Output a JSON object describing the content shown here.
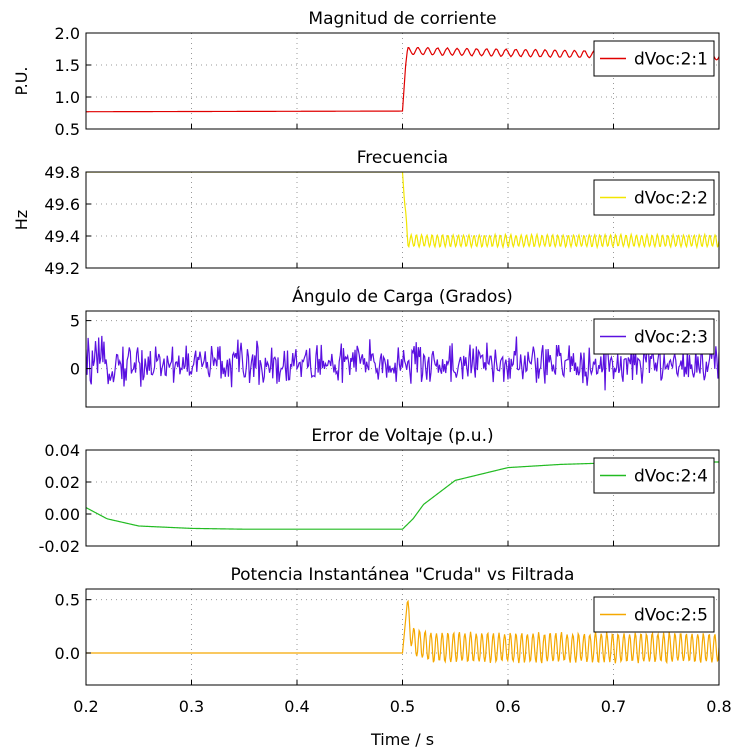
{
  "chart_data": [
    {
      "type": "line",
      "title": "Magnitud de corriente",
      "ylabel": "P.U.",
      "xlim": [
        0.2,
        0.8
      ],
      "ylim": [
        0.5,
        2.0
      ],
      "yticks": [
        "2.0",
        "1.5",
        "1.0",
        "0.5"
      ],
      "ytick_values": [
        2.0,
        1.5,
        1.0,
        0.5
      ],
      "grid": true,
      "legend": "top-right",
      "series": [
        {
          "name": "dVoc:2:1",
          "color": "#e00000",
          "x": [
            0.2,
            0.5,
            0.503,
            0.505,
            0.8
          ],
          "values": [
            0.77,
            0.78,
            1.5,
            1.72,
            1.63
          ],
          "ripple_amplitude_after_step": 0.06,
          "ripple_cycles_after_step": 32
        }
      ]
    },
    {
      "type": "line",
      "title": "Frecuencia",
      "ylabel": "Hz",
      "xlim": [
        0.2,
        0.8
      ],
      "ylim": [
        49.2,
        49.8
      ],
      "yticks": [
        "49.8",
        "49.6",
        "49.4",
        "49.2"
      ],
      "ytick_values": [
        49.8,
        49.6,
        49.4,
        49.2
      ],
      "grid": true,
      "legend": "top-right",
      "series": [
        {
          "name": "dVoc:2:2",
          "color": "#f2e600",
          "x": [
            0.2,
            0.5,
            0.502,
            0.505,
            0.8
          ],
          "values": [
            49.8,
            49.8,
            49.6,
            49.37,
            49.37
          ],
          "ripple_amplitude_after_step": 0.04,
          "ripple_cycles_after_step": 60
        }
      ]
    },
    {
      "type": "line",
      "title": "Ángulo de Carga (Grados)",
      "ylabel": "",
      "xlim": [
        0.2,
        0.8
      ],
      "ylim": [
        -4,
        6
      ],
      "yticks": [
        "5",
        "0"
      ],
      "ytick_values": [
        5,
        0
      ],
      "grid": true,
      "legend": "top-right",
      "series": [
        {
          "name": "dVoc:2:3",
          "color": "#5a10e0",
          "x": [
            0.2,
            0.8
          ],
          "values": [
            0.5,
            0.5
          ],
          "noise_amplitude": 2.2,
          "noise_points": 600
        }
      ]
    },
    {
      "type": "line",
      "title": "Error de Voltaje (p.u.)",
      "ylabel": "",
      "xlim": [
        0.2,
        0.8
      ],
      "ylim": [
        -0.02,
        0.04
      ],
      "yticks": [
        "0.04",
        "0.02",
        "0.00",
        "-0.02"
      ],
      "ytick_values": [
        0.04,
        0.02,
        0.0,
        -0.02
      ],
      "grid": true,
      "legend": "top-right",
      "series": [
        {
          "name": "dVoc:2:4",
          "color": "#22bb22",
          "x": [
            0.2,
            0.22,
            0.25,
            0.3,
            0.35,
            0.4,
            0.45,
            0.5,
            0.51,
            0.52,
            0.55,
            0.6,
            0.65,
            0.7,
            0.75,
            0.8
          ],
          "values": [
            0.004,
            -0.003,
            -0.0075,
            -0.009,
            -0.0095,
            -0.0095,
            -0.0095,
            -0.0095,
            -0.003,
            0.006,
            0.021,
            0.029,
            0.031,
            0.032,
            0.0325,
            0.0325
          ]
        }
      ]
    },
    {
      "type": "line",
      "title": "Potencia Instantánea \"Cruda\" vs Filtrada",
      "ylabel": "",
      "xlabel": "Time / s",
      "xlim": [
        0.2,
        0.8
      ],
      "ylim": [
        -0.3,
        0.6
      ],
      "yticks": [
        "0.5",
        "0.0"
      ],
      "ytick_values": [
        0.5,
        0.0
      ],
      "xticks": [
        "0.2",
        "0.3",
        "0.4",
        "0.5",
        "0.6",
        "0.7",
        "0.8"
      ],
      "xtick_values": [
        0.2,
        0.3,
        0.4,
        0.5,
        0.6,
        0.7,
        0.8
      ],
      "grid": true,
      "legend": "top-right",
      "series": [
        {
          "name": "dVoc:2:5",
          "color": "#f5a800",
          "x": [
            0.2,
            0.5,
            0.504,
            0.51,
            0.53,
            0.8
          ],
          "values": [
            0.0,
            0.0,
            0.42,
            0.1,
            0.05,
            0.05
          ],
          "ripple_amplitude_after_step": 0.15,
          "ripple_cycles_after_step": 55
        }
      ]
    }
  ]
}
